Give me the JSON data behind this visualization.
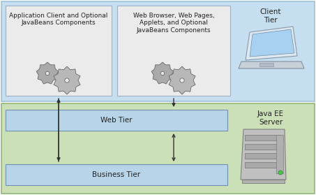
{
  "bg_color": "#ffffff",
  "client_tier_bg": "#c5dff0",
  "client_tier_edge": "#a0c0d8",
  "server_tier_bg": "#cce0b8",
  "server_tier_edge": "#90b878",
  "box_fill": "#ebebeb",
  "box_edge": "#a0b0c0",
  "tier_box_fill": "#b8d4e8",
  "tier_box_edge": "#7090b0",
  "app_client_label": "Application Client and Optional\nJavaBeans Components",
  "web_client_label": "Web Browser, Web Pages,\nApplets, and Optional\nJavaBeans Components",
  "client_tier_label": "Client\nTier",
  "web_tier_label": "Web Tier",
  "business_tier_label": "Business Tier",
  "java_ee_label": "Java EE\nServer",
  "font_size_box": 6.5,
  "font_size_tier": 7.5,
  "font_size_label": 7.5
}
